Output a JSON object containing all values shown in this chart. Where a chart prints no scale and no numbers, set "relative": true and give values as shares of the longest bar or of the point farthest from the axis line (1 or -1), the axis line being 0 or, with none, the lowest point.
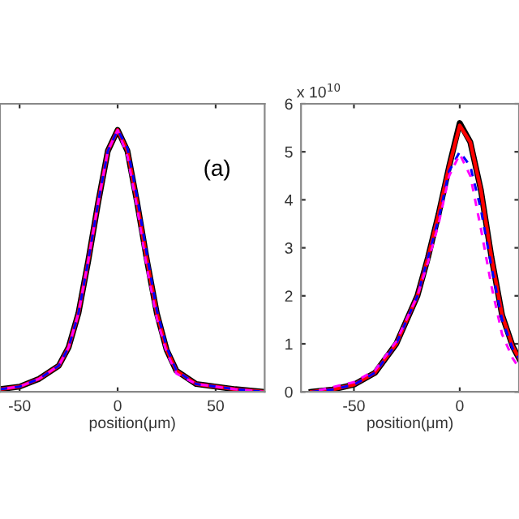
{
  "chart_data": [
    {
      "type": "line",
      "relative": true,
      "xlabel": "position(μm)",
      "annotations": [
        "(a)"
      ],
      "xlim": [
        -60,
        75
      ],
      "xticks": [
        -50,
        0,
        50
      ],
      "grid": false,
      "legend": false,
      "x": [
        -60,
        -50,
        -40,
        -30,
        -25,
        -20,
        -15,
        -10,
        -5,
        0,
        5,
        10,
        15,
        20,
        25,
        30,
        40,
        50,
        60,
        75
      ],
      "series": [
        {
          "color": "#000000",
          "line_style": "solid",
          "values": [
            0.01,
            0.02,
            0.05,
            0.1,
            0.17,
            0.3,
            0.5,
            0.72,
            0.92,
            1,
            0.92,
            0.72,
            0.5,
            0.3,
            0.16,
            0.08,
            0.03,
            0.02,
            0.01,
            0.0
          ]
        },
        {
          "color": "#ff0000",
          "line_style": "solid",
          "values": [
            0.01,
            0.02,
            0.05,
            0.1,
            0.17,
            0.3,
            0.5,
            0.72,
            0.92,
            1,
            0.92,
            0.72,
            0.5,
            0.3,
            0.16,
            0.08,
            0.03,
            0.02,
            0.01,
            0.0
          ]
        },
        {
          "color": "#0000ff",
          "line_style": "dashed",
          "values": [
            0.01,
            0.02,
            0.05,
            0.1,
            0.17,
            0.3,
            0.5,
            0.72,
            0.92,
            1,
            0.93,
            0.74,
            0.52,
            0.31,
            0.17,
            0.08,
            0.03,
            0.02,
            0.01,
            0.0
          ]
        },
        {
          "color": "#ff00ff",
          "line_style": "dashed",
          "values": [
            0.01,
            0.02,
            0.05,
            0.1,
            0.17,
            0.3,
            0.5,
            0.72,
            0.92,
            1,
            0.9,
            0.7,
            0.47,
            0.28,
            0.15,
            0.07,
            0.03,
            0.02,
            0.01,
            0.0
          ]
        }
      ]
    },
    {
      "type": "line",
      "xlabel": "position(μm)",
      "annotations": [
        "x 10$^{10}$"
      ],
      "xlim": [
        -75,
        28
      ],
      "xticks": [
        -50,
        0
      ],
      "ylim": [
        0,
        6
      ],
      "yticks": [
        0,
        1,
        2,
        3,
        4,
        5,
        6
      ],
      "grid": false,
      "legend": false,
      "x": [
        -70,
        -60,
        -50,
        -40,
        -30,
        -20,
        -15,
        -10,
        -5,
        0,
        5,
        10,
        15,
        20,
        25,
        28
      ],
      "series": [
        {
          "color": "#000000",
          "line_style": "solid",
          "values": [
            0.0,
            0.05,
            0.15,
            0.4,
            1.0,
            2.0,
            2.8,
            3.7,
            4.7,
            5.6,
            5.2,
            4.2,
            2.8,
            1.6,
            0.95,
            0.7
          ]
        },
        {
          "color": "#ff0000",
          "line_style": "solid",
          "values": [
            0.0,
            0.05,
            0.15,
            0.4,
            1.0,
            2.0,
            2.8,
            3.7,
            4.7,
            5.55,
            5.2,
            4.2,
            2.8,
            1.6,
            0.95,
            0.7
          ]
        },
        {
          "color": "#0000ff",
          "line_style": "dashed",
          "values": [
            0.0,
            0.05,
            0.15,
            0.4,
            1.0,
            2.0,
            2.8,
            3.6,
            4.6,
            5.0,
            4.7,
            3.8,
            2.6,
            1.5,
            0.9,
            0.7
          ]
        },
        {
          "color": "#ff00ff",
          "line_style": "dashed",
          "values": [
            0.0,
            0.1,
            0.2,
            0.45,
            1.05,
            2.0,
            2.7,
            3.5,
            4.5,
            4.95,
            4.5,
            3.4,
            2.2,
            1.2,
            0.7,
            0.5
          ]
        }
      ]
    }
  ]
}
